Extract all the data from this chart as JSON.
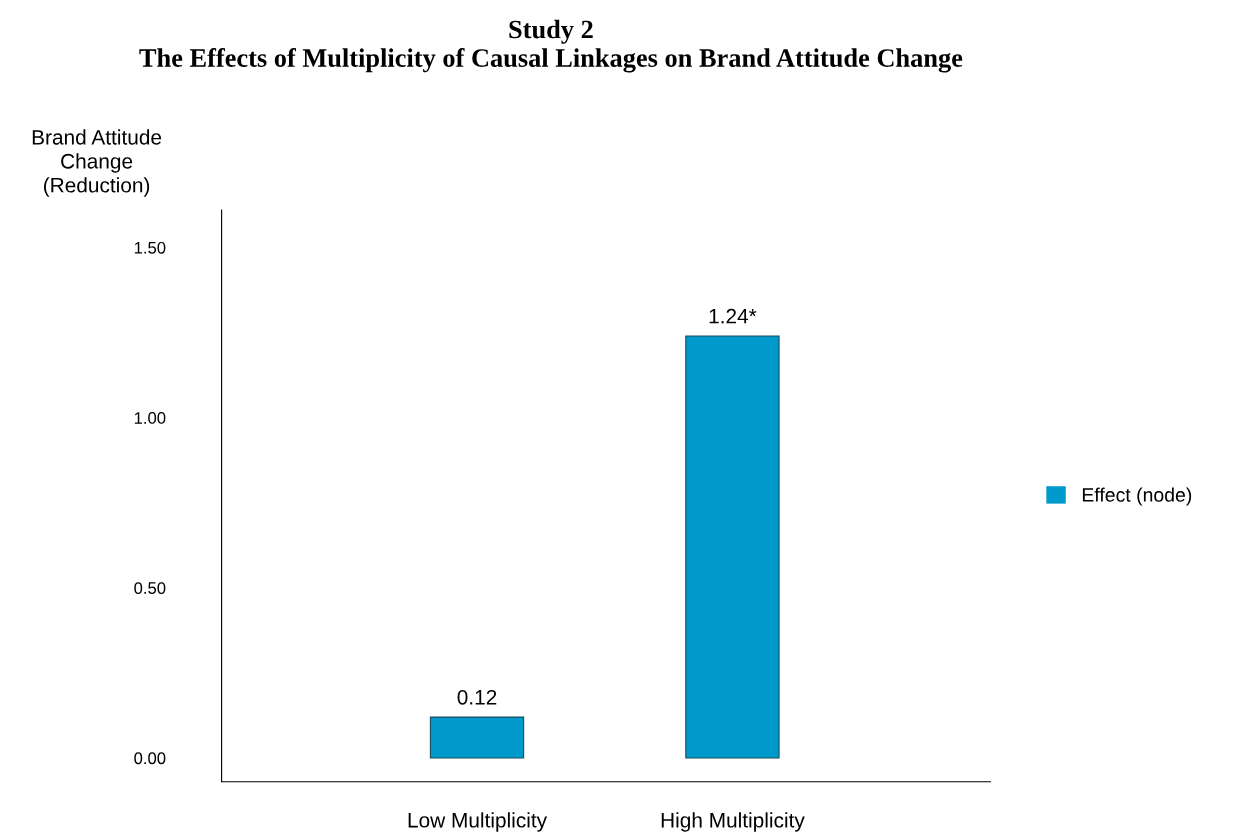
{
  "chart_data": {
    "type": "bar",
    "title": "Study 2",
    "subtitle": "The Effects of Multiplicity of Causal Linkages on Brand Attitude Change",
    "ylabel": "Brand Attitude\nChange\n(Reduction)",
    "categories": [
      "Low Multiplicity",
      "High Multiplicity"
    ],
    "series": [
      {
        "name": "Effect (node)",
        "color": "#0099cc",
        "values": [
          0.12,
          1.24
        ],
        "value_labels": [
          "0.12",
          "1.24*"
        ]
      }
    ],
    "ylim": [
      -0.07,
      1.61
    ],
    "yticks": [
      {
        "value": 0,
        "label": "0.00"
      },
      {
        "value": 0.5,
        "label": "0.50"
      },
      {
        "value": 1.0,
        "label": "1.00"
      },
      {
        "value": 1.5,
        "label": "1.50"
      }
    ],
    "grid": false,
    "legend": "right"
  }
}
